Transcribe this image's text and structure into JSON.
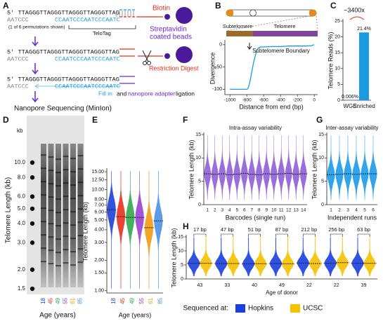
{
  "panel_labels": [
    "A",
    "B",
    "C",
    "D",
    "E",
    "F",
    "G",
    "H"
  ],
  "diagram": {
    "strand_top": "5' TTAGGGTTAGGGTTAGGGTTAGGGTTAG",
    "strand_bottom": "AATCCC",
    "telotag_seq": "CCAATCCCAATCCCAATC",
    "permutation_note": "(1 of 6 permutations shown)",
    "telotag": "TeloTag",
    "biotin": "Biotin",
    "beads_line1": "Streptavidin",
    "beads_line2": "coated beads",
    "digest": "Restriction Digest",
    "fill_in": "Fill in",
    "and": "and",
    "adapter": "nanopore adapter",
    "ligation": "ligation",
    "sequencing": "Nanopore Sequencing (MinIon)"
  },
  "gel": {
    "unit": "kb",
    "ylabel": "Telomere Length (kb)",
    "xlabel": "Age (years)",
    "ticks": [
      {
        "value": 10,
        "label": "10.0"
      },
      {
        "value": 8,
        "label": "8.0"
      },
      {
        "value": 6,
        "label": "6.0"
      },
      {
        "value": 5,
        "label": "5.0"
      },
      {
        "value": 4,
        "label": "4.0"
      },
      {
        "value": 3,
        "label": "3.0"
      },
      {
        "value": 2,
        "label": "2.0"
      },
      {
        "value": 1.5,
        "label": "1.5"
      }
    ],
    "lanes": [
      "18",
      "45",
      "49",
      "55",
      "61",
      "85"
    ],
    "lane_colors": [
      "#1f3fd6",
      "#e8301e",
      "#2fa84f",
      "#9b40d0",
      "#f29a13",
      "#4a90e2"
    ]
  },
  "chart_data": [
    {
      "type": "line",
      "subtelomere_label": "Subtelomere",
      "telomere_label": "Telomere",
      "annotation": "Subtelomere Boundary",
      "xlabel": "Distance from end (bp)",
      "ylabel": "Divergence",
      "color": "#1a9be0",
      "x": [
        -1000,
        -900,
        -800,
        -790,
        -780,
        -765,
        -750,
        -735,
        -720,
        -700,
        -680,
        -660,
        -640,
        -600,
        -500,
        -400,
        -300,
        -200,
        -100,
        -30,
        0
      ],
      "values": [
        -100,
        -100,
        -100,
        -99,
        -95,
        -85,
        -70,
        -55,
        -40,
        -25,
        -12,
        -7,
        -5,
        -5,
        -4,
        -4,
        -3,
        -3,
        -3,
        -2,
        0
      ],
      "xlim": [
        -1060,
        40
      ],
      "ylim": [
        -112,
        6
      ],
      "xticks": [
        -1000,
        -800,
        -600,
        -400,
        -200,
        0
      ],
      "yticks": [
        -100,
        -50,
        0
      ]
    },
    {
      "type": "bar",
      "ylabel": "Telomere Reads (%)",
      "annotation": "~3400x",
      "categories": [
        "WGS",
        "Enriched"
      ],
      "values": [
        0.006,
        21.4
      ],
      "value_labels": [
        "0.006%",
        "21.4%"
      ],
      "color": "#1a9be0",
      "ylim": [
        0,
        25
      ],
      "yticks": [
        0,
        5,
        10,
        15,
        20,
        25
      ]
    },
    {
      "type": "violin",
      "ylabel": "Telomere Length (kb)",
      "xlabel": "Age (years)",
      "scale": "log",
      "categories": [
        "18",
        "45",
        "49",
        "55",
        "61",
        "85"
      ],
      "values": [
        6.3,
        5.4,
        5.3,
        5.3,
        4.2,
        4.9
      ],
      "colors": [
        "#1f3fd6",
        "#e8301e",
        "#2fa84f",
        "#9b40d0",
        "#f29a13",
        "#4a90e2"
      ],
      "ylim": [
        0.95,
        15.5
      ],
      "yticks": [
        {
          "value": 15,
          "label": "15.00"
        },
        {
          "value": 12.5,
          "label": "12.50"
        },
        {
          "value": 10,
          "label": "10.00"
        },
        {
          "value": 8,
          "label": "8.00"
        },
        {
          "value": 7,
          "label": "7.00"
        },
        {
          "value": 6,
          "label": "6.00"
        },
        {
          "value": 5,
          "label": "5.00"
        },
        {
          "value": 4,
          "label": "4.00"
        },
        {
          "value": 3,
          "label": "3.00"
        },
        {
          "value": 2,
          "label": "2.00"
        },
        {
          "value": 1.5,
          "label": "1.50"
        },
        {
          "value": 1,
          "label": "1.00"
        }
      ]
    },
    {
      "type": "violin",
      "title": "Intra-assay variability",
      "xlabel": "Barcodes (single run)",
      "ylabel": "Telomere Length (kb)",
      "categories": [
        "1",
        "2",
        "3",
        "4",
        "5",
        "6",
        "7",
        "8",
        "9",
        "10",
        "11",
        "12",
        "13",
        "14"
      ],
      "values": [
        6.6,
        6.5,
        6.6,
        6.4,
        6.5,
        6.7,
        6.5,
        6.4,
        6.6,
        6.5,
        6.6,
        6.7,
        6.5,
        6.6
      ],
      "color": "#8f5fd8",
      "ylim": [
        0,
        15
      ],
      "yticks": [
        0,
        5,
        10,
        15
      ]
    },
    {
      "type": "violin",
      "title": "Inter-assay variability",
      "xlabel": "Independent runs",
      "ylabel": "Telomere Length (kb)",
      "categories": [
        "1",
        "2",
        "3",
        "4",
        "5",
        "6"
      ],
      "values": [
        6.4,
        6.5,
        6.6,
        6.5,
        6.6,
        6.6
      ],
      "color": "#1b9be8",
      "ylim": [
        0,
        15
      ],
      "yticks": [
        0,
        5,
        10,
        15
      ]
    },
    {
      "type": "paired_violin",
      "ylabel": "Telomere Length (kb)",
      "xlabel": "Age of donor",
      "legend_title": "Sequenced at:",
      "categories": [
        "43",
        "33",
        "40",
        "49",
        "22",
        "22",
        "39"
      ],
      "annotations": [
        "17 bp",
        "47 bp",
        "51 bp",
        "87 bp",
        "212 bp",
        "256 bp",
        "63 bp"
      ],
      "series": [
        {
          "name": "Hopkins",
          "color": "#1a3fe0",
          "values": [
            5.6,
            5.5,
            5.4,
            5.5,
            5.7,
            5.6,
            5.6
          ]
        },
        {
          "name": "UCSC",
          "color": "#f5c000",
          "values": [
            5.6,
            5.5,
            5.45,
            5.4,
            5.5,
            5.8,
            5.6
          ]
        }
      ],
      "ylim": [
        0,
        15
      ],
      "yticks": [
        0,
        5,
        10,
        15
      ]
    }
  ]
}
